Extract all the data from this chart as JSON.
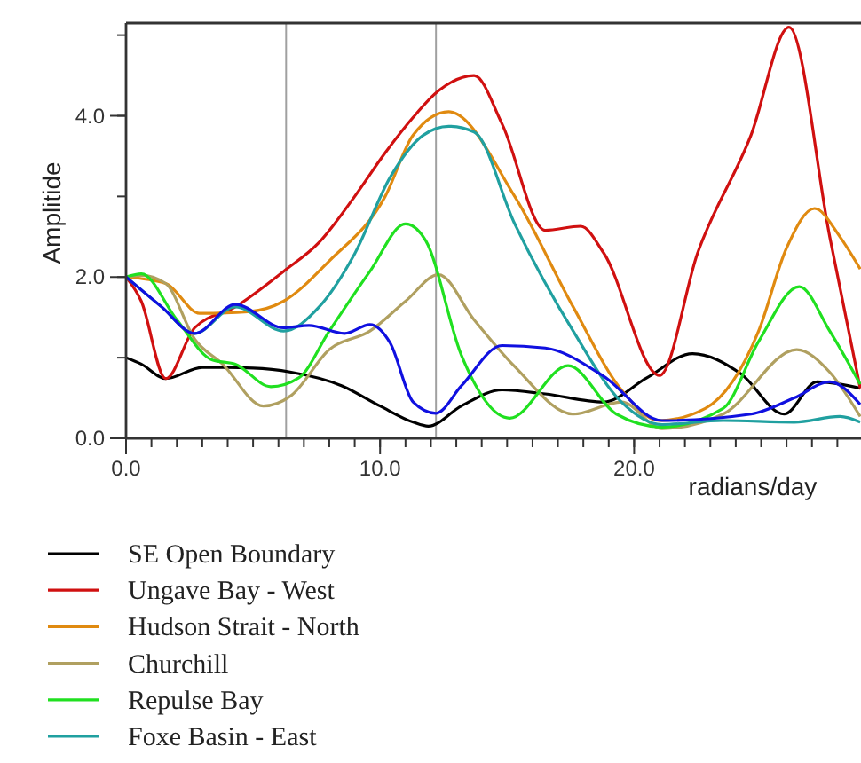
{
  "chart_data": {
    "type": "line",
    "xlabel": "radians/day",
    "ylabel": "Amplitide",
    "xlim": [
      0,
      29
    ],
    "ylim": [
      0,
      5.15
    ],
    "xticks": [
      {
        "value": 0,
        "label": "0.0"
      },
      {
        "value": 10,
        "label": "10.0"
      },
      {
        "value": 20,
        "label": "20.0"
      }
    ],
    "yticks": [
      {
        "value": 0,
        "label": "0.0"
      },
      {
        "value": 2,
        "label": "2.0"
      },
      {
        "value": 4,
        "label": "4.0"
      }
    ],
    "grid": false,
    "legend": "bottom",
    "line_style": "solid",
    "ref_lines": [
      {
        "axis": "x",
        "value": 6.3,
        "color": "#a0a0a0"
      },
      {
        "axis": "x",
        "value": 12.2,
        "color": "#a0a0a0"
      }
    ],
    "series": [
      {
        "name": "SE Open Boundary",
        "color": "#000000",
        "x": [
          0,
          0.6,
          1.56,
          3,
          5,
          6.5,
          8.5,
          10,
          11.3,
          11.9,
          13.2,
          14.8,
          16.5,
          18.8,
          20.5,
          22.3,
          24.2,
          25.9,
          27.2,
          28.9
        ],
        "values": [
          1.0,
          0.92,
          0.74,
          0.88,
          0.87,
          0.82,
          0.65,
          0.4,
          0.2,
          0.15,
          0.4,
          0.6,
          0.55,
          0.45,
          0.75,
          1.05,
          0.8,
          0.3,
          0.7,
          0.62
        ]
      },
      {
        "name": "Ungave Bay - West",
        "color": "#d01010",
        "x": [
          0,
          0.6,
          1.56,
          2.7,
          4.3,
          6.2,
          7.6,
          9.0,
          10.2,
          11.3,
          12.3,
          13.7,
          14.8,
          16.5,
          17.9,
          18.8,
          21.0,
          22.5,
          24.6,
          26.1,
          27.7,
          28.9
        ],
        "values": [
          2.0,
          1.7,
          0.74,
          1.37,
          1.63,
          2.07,
          2.43,
          3.0,
          3.54,
          3.98,
          4.31,
          4.5,
          3.9,
          2.58,
          2.63,
          2.3,
          0.78,
          2.3,
          3.76,
          5.1,
          2.5,
          0.62
        ]
      },
      {
        "name": "Hudson Strait - North",
        "color": "#e08a10",
        "x": [
          0,
          1.56,
          2.9,
          4.8,
          6.2,
          8.0,
          10.2,
          11.3,
          12.7,
          15.3,
          17.6,
          19.5,
          21.0,
          22.8,
          24.9,
          26.0,
          27.1,
          28.1,
          28.9
        ],
        "values": [
          2.0,
          1.92,
          1.55,
          1.57,
          1.7,
          2.2,
          3.0,
          3.76,
          4.05,
          3.0,
          1.63,
          0.6,
          0.22,
          0.37,
          1.33,
          2.36,
          2.85,
          2.5,
          2.1
        ]
      },
      {
        "name": "Churchill",
        "color": "#b0a060",
        "x": [
          0,
          0.6,
          1.56,
          2.7,
          3.8,
          5.4,
          6.5,
          8.0,
          9.6,
          11.0,
          12.3,
          13.7,
          15.3,
          17.6,
          19.5,
          21.1,
          23.5,
          26.4,
          27.7,
          28.9
        ],
        "values": [
          2.0,
          2.02,
          1.92,
          1.23,
          0.92,
          0.4,
          0.53,
          1.1,
          1.33,
          1.7,
          2.03,
          1.47,
          0.89,
          0.3,
          0.45,
          0.12,
          0.3,
          1.1,
          0.82,
          0.27
        ]
      },
      {
        "name": "Repulse Bay",
        "color": "#20e020",
        "x": [
          0,
          0.6,
          2.0,
          3.4,
          4.3,
          5.7,
          6.8,
          8.0,
          9.6,
          11.0,
          11.8,
          13.2,
          15.1,
          17.4,
          19.3,
          21.1,
          23.5,
          24.9,
          26.5,
          27.7,
          28.9
        ],
        "values": [
          2.0,
          2.04,
          1.47,
          0.97,
          0.92,
          0.64,
          0.75,
          1.33,
          2.07,
          2.66,
          2.45,
          1.03,
          0.25,
          0.9,
          0.3,
          0.14,
          0.37,
          1.2,
          1.88,
          1.33,
          0.67
        ]
      },
      {
        "name": "Foxe Basin - East",
        "color": "#20a0a0",
        "x": [
          0,
          1.4,
          2.7,
          4.3,
          6.2,
          7.6,
          9.0,
          10.4,
          11.7,
          12.7,
          13.7,
          15.3,
          17.6,
          19.5,
          21.1,
          23.5,
          26.3,
          28.1,
          28.9
        ],
        "values": [
          2.0,
          1.63,
          1.3,
          1.63,
          1.33,
          1.63,
          2.29,
          3.24,
          3.76,
          3.87,
          3.8,
          2.66,
          1.33,
          0.45,
          0.17,
          0.22,
          0.2,
          0.27,
          0.2
        ]
      },
      {
        "color": "#1010e0",
        "x": [
          0,
          1.4,
          2.7,
          4.3,
          6.2,
          7.2,
          8.6,
          9.6,
          10.4,
          11.3,
          12.2,
          13.2,
          14.8,
          16.5,
          18.8,
          21.1,
          24.6,
          26.3,
          27.7,
          28.9
        ],
        "values": [
          2.0,
          1.63,
          1.3,
          1.66,
          1.37,
          1.4,
          1.3,
          1.41,
          1.18,
          0.45,
          0.31,
          0.65,
          1.15,
          1.12,
          0.77,
          0.22,
          0.3,
          0.5,
          0.7,
          0.42
        ]
      }
    ]
  }
}
